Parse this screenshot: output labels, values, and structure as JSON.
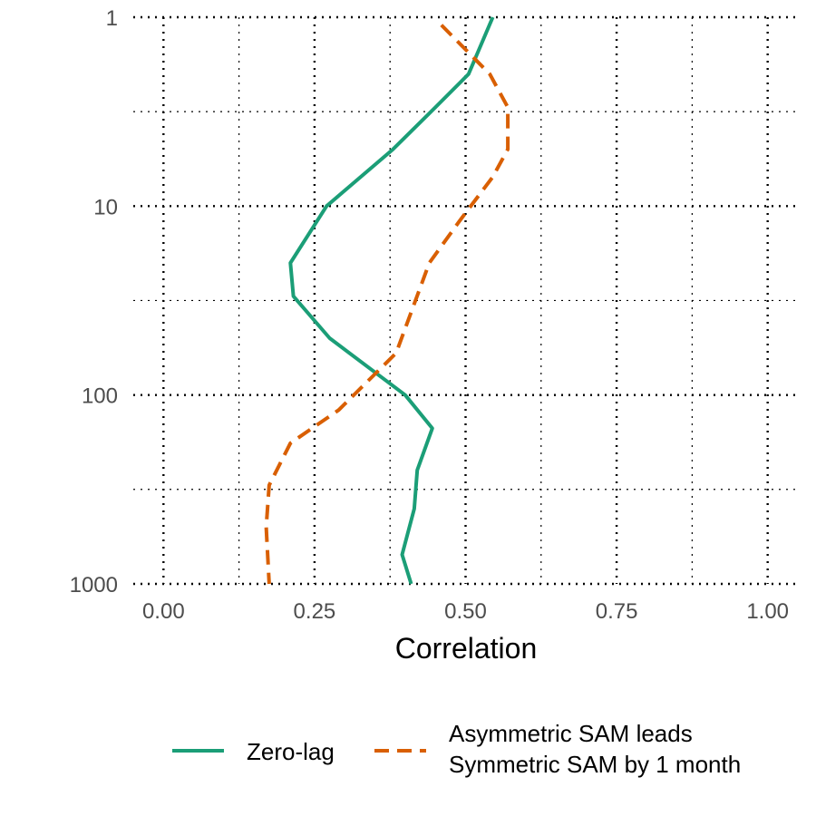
{
  "chart_data": {
    "type": "line",
    "title": "",
    "xlabel": "Correlation",
    "ylabel": "",
    "xlim": [
      -0.05,
      1.05
    ],
    "ylim": [
      1,
      1000
    ],
    "y_scale": "log",
    "y_reversed": true,
    "x_ticks": [
      0,
      0.25,
      0.5,
      0.75,
      1
    ],
    "x_tick_labels": [
      "0.00",
      "0.25",
      "0.50",
      "0.75",
      "1.00"
    ],
    "x_minor_ticks": [
      0.125,
      0.375,
      0.625,
      0.875
    ],
    "y_ticks": [
      1,
      10,
      100,
      1000
    ],
    "y_tick_labels": [
      "1",
      "10",
      "100",
      "1000"
    ],
    "y_minor_ticks": [
      3.16,
      31.6,
      316
    ],
    "grid": true,
    "legend_position": "bottom",
    "series": [
      {
        "name": "Zero-lag",
        "color": "#1b9e77",
        "dash": "solid",
        "points": [
          {
            "x": 0.545,
            "y": 1
          },
          {
            "x": 0.505,
            "y": 2
          },
          {
            "x": 0.45,
            "y": 3
          },
          {
            "x": 0.38,
            "y": 5
          },
          {
            "x": 0.27,
            "y": 10
          },
          {
            "x": 0.21,
            "y": 20
          },
          {
            "x": 0.215,
            "y": 30
          },
          {
            "x": 0.275,
            "y": 50
          },
          {
            "x": 0.4,
            "y": 100
          },
          {
            "x": 0.445,
            "y": 150
          },
          {
            "x": 0.42,
            "y": 250
          },
          {
            "x": 0.415,
            "y": 400
          },
          {
            "x": 0.395,
            "y": 700
          },
          {
            "x": 0.41,
            "y": 1000
          }
        ]
      },
      {
        "name": "Asymmetric SAM leads\nSymmetric SAM by 1 month",
        "color": "#d95f02",
        "dash": "dashed",
        "points": [
          {
            "x": 0.46,
            "y": 1.1
          },
          {
            "x": 0.54,
            "y": 2
          },
          {
            "x": 0.57,
            "y": 3
          },
          {
            "x": 0.57,
            "y": 5
          },
          {
            "x": 0.545,
            "y": 7
          },
          {
            "x": 0.49,
            "y": 12
          },
          {
            "x": 0.44,
            "y": 20
          },
          {
            "x": 0.385,
            "y": 60
          },
          {
            "x": 0.29,
            "y": 120
          },
          {
            "x": 0.21,
            "y": 180
          },
          {
            "x": 0.175,
            "y": 300
          },
          {
            "x": 0.17,
            "y": 500
          },
          {
            "x": 0.175,
            "y": 1000
          }
        ]
      }
    ]
  }
}
